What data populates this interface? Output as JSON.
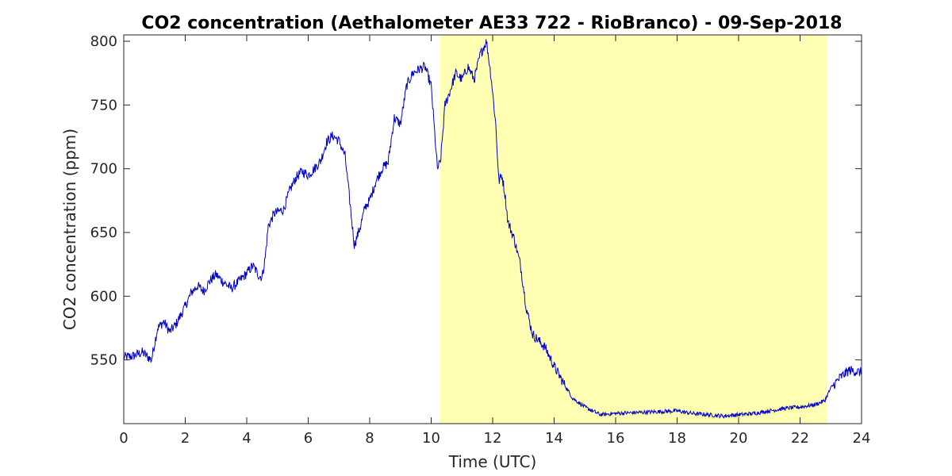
{
  "chart_data": {
    "type": "line",
    "title": "CO2 concentration (Aethalometer AE33 722 - RioBranco) - 09-Sep-2018",
    "xlabel": "Time (UTC)",
    "ylabel": "CO2 concentration (ppm)",
    "xlim": [
      0,
      24
    ],
    "ylim": [
      500,
      805
    ],
    "x_ticks": [
      0,
      2,
      4,
      6,
      8,
      10,
      12,
      14,
      16,
      18,
      20,
      22,
      24
    ],
    "y_ticks": [
      550,
      600,
      650,
      700,
      750,
      800
    ],
    "grid": false,
    "highlight": {
      "x_start": 10.28,
      "x_end": 22.88,
      "color": "#ffffb3"
    },
    "series": [
      {
        "color": "#0000cc",
        "x": [
          0,
          0.3,
          0.6,
          0.9,
          1.1,
          1.3,
          1.5,
          1.7,
          2.0,
          2.2,
          2.4,
          2.6,
          2.8,
          3.0,
          3.2,
          3.5,
          3.8,
          4.0,
          4.2,
          4.4,
          4.5,
          4.6,
          4.7,
          4.9,
          5.0,
          5.2,
          5.4,
          5.6,
          5.8,
          6.0,
          6.2,
          6.4,
          6.6,
          6.8,
          7.0,
          7.2,
          7.35,
          7.5,
          7.7,
          7.85,
          8.0,
          8.2,
          8.4,
          8.6,
          8.8,
          9.0,
          9.2,
          9.4,
          9.6,
          9.8,
          10.0,
          10.2,
          10.3,
          10.45,
          10.6,
          10.8,
          11.0,
          11.2,
          11.4,
          11.6,
          11.8,
          11.95,
          12.1,
          12.2,
          12.3,
          12.4,
          12.5,
          12.7,
          12.9,
          13.1,
          13.3,
          13.5,
          13.7,
          14.0,
          14.3,
          14.6,
          15.0,
          15.5,
          16.0,
          17.0,
          18.0,
          18.5,
          19.0,
          19.5,
          20.0,
          20.5,
          21.0,
          21.5,
          22.0,
          22.5,
          22.8,
          23.0,
          23.3,
          23.6,
          24.0
        ],
        "y": [
          552,
          553,
          556,
          550,
          575,
          580,
          572,
          578,
          592,
          603,
          608,
          604,
          612,
          617,
          612,
          606,
          613,
          618,
          624,
          616,
          615,
          630,
          655,
          665,
          666,
          668,
          683,
          693,
          698,
          695,
          700,
          706,
          721,
          726,
          722,
          710,
          675,
          640,
          655,
          670,
          675,
          690,
          700,
          705,
          740,
          735,
          765,
          775,
          778,
          780,
          765,
          700,
          705,
          750,
          760,
          775,
          770,
          780,
          770,
          790,
          800,
          772,
          735,
          690,
          695,
          680,
          658,
          645,
          625,
          590,
          570,
          565,
          560,
          545,
          532,
          520,
          513,
          507,
          508,
          509,
          510,
          508,
          507,
          506,
          507,
          508,
          510,
          512,
          513,
          515,
          518,
          528,
          536,
          542,
          540
        ]
      }
    ]
  }
}
